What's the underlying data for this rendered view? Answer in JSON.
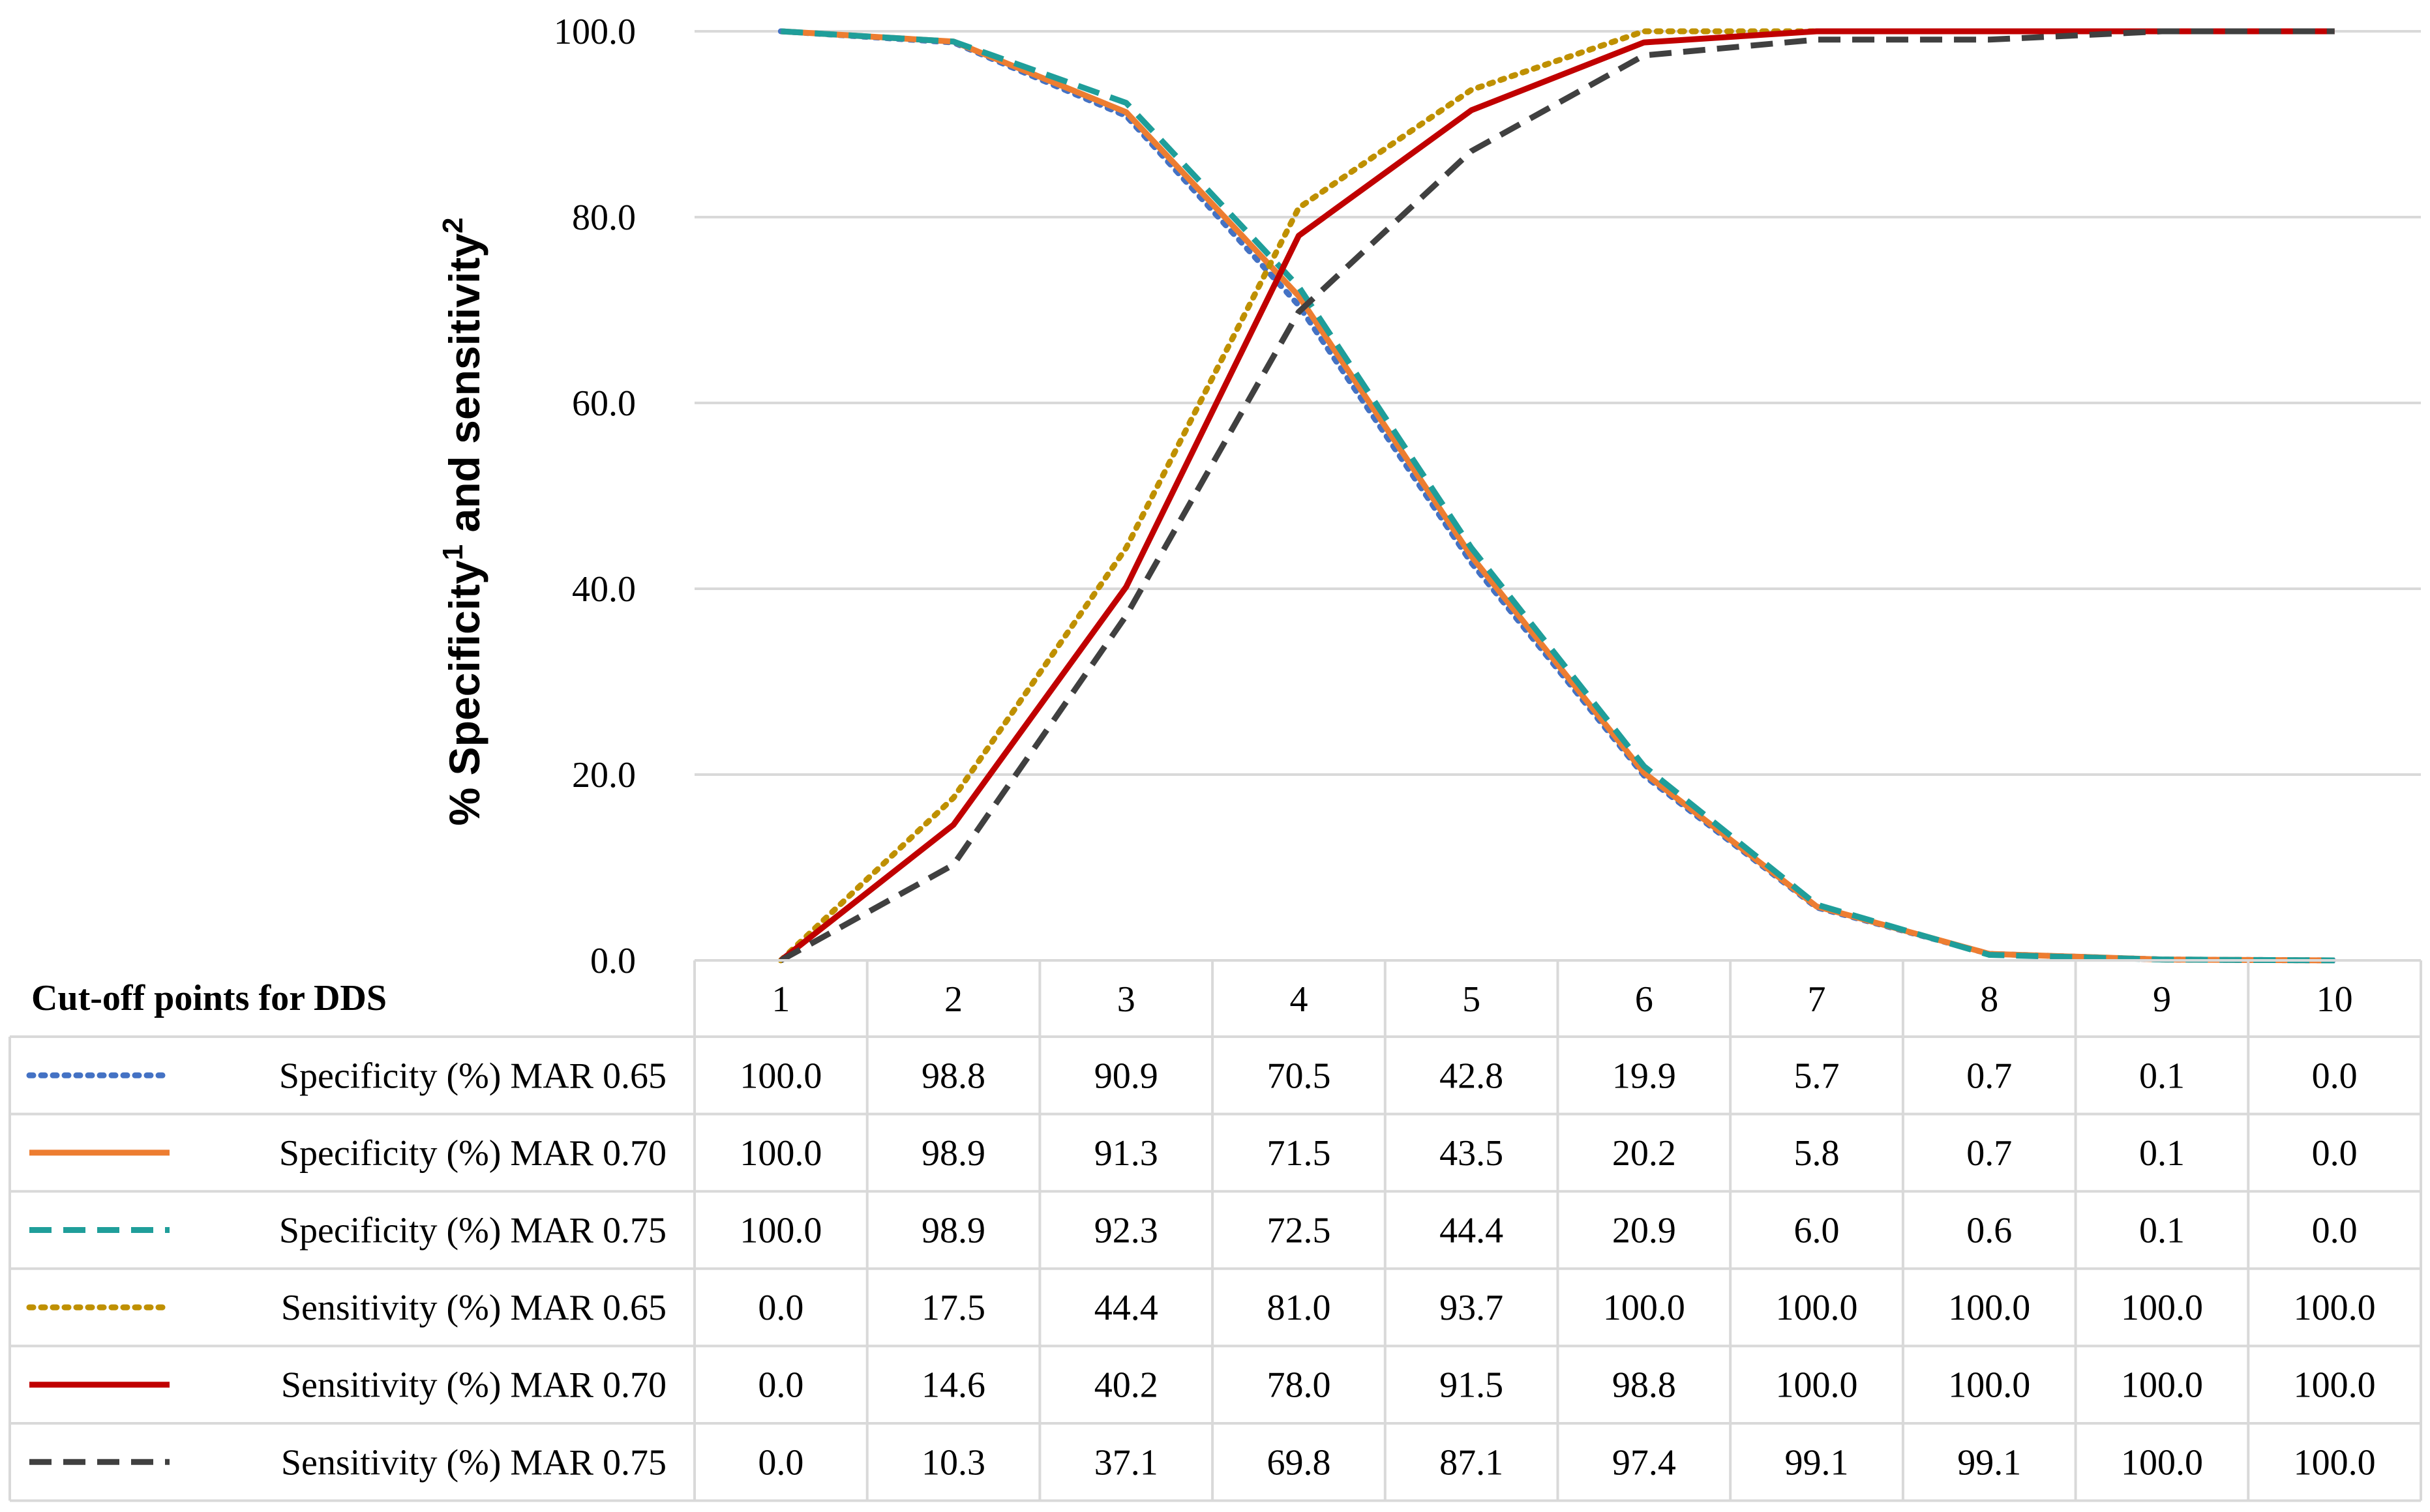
{
  "chart_data": {
    "type": "line",
    "title": "",
    "xlabel": "Cut-off points for DDS",
    "ylabel_main": "% Specificity",
    "ylabel_sup1": "1",
    "ylabel_mid": " and sensitivity",
    "ylabel_sup2": "2",
    "ylim": [
      0,
      100
    ],
    "yticks": [
      "0.0",
      "20.0",
      "40.0",
      "60.0",
      "80.0",
      "100.0"
    ],
    "categories": [
      "1",
      "2",
      "3",
      "4",
      "5",
      "6",
      "7",
      "8",
      "9",
      "10"
    ],
    "legend": "data-table",
    "series": [
      {
        "name": "Specificity (%) MAR 0.65",
        "color": "#4472c4",
        "dash": "dotted",
        "values": [
          100.0,
          98.8,
          90.9,
          70.5,
          42.8,
          19.9,
          5.7,
          0.7,
          0.1,
          0.0
        ],
        "labels": [
          "100.0",
          "98.8",
          "90.9",
          "70.5",
          "42.8",
          "19.9",
          "5.7",
          "0.7",
          "0.1",
          "0.0"
        ]
      },
      {
        "name": "Specificity (%) MAR 0.70",
        "color": "#ed7d31",
        "dash": "solid",
        "values": [
          100.0,
          98.9,
          91.3,
          71.5,
          43.5,
          20.2,
          5.8,
          0.7,
          0.1,
          0.0
        ],
        "labels": [
          "100.0",
          "98.9",
          "91.3",
          "71.5",
          "43.5",
          "20.2",
          "5.8",
          "0.7",
          "0.1",
          "0.0"
        ]
      },
      {
        "name": "Specificity (%) MAR 0.75",
        "color": "#1f9e9a",
        "dash": "dashed",
        "values": [
          100.0,
          98.9,
          92.3,
          72.5,
          44.4,
          20.9,
          6.0,
          0.6,
          0.1,
          0.0
        ],
        "labels": [
          "100.0",
          "98.9",
          "92.3",
          "72.5",
          "44.4",
          "20.9",
          "6.0",
          "0.6",
          "0.1",
          "0.0"
        ]
      },
      {
        "name": "Sensitivity (%) MAR 0.65",
        "color": "#bf9000",
        "dash": "dotted",
        "values": [
          0.0,
          17.5,
          44.4,
          81.0,
          93.7,
          100.0,
          100.0,
          100.0,
          100.0,
          100.0
        ],
        "labels": [
          "0.0",
          "17.5",
          "44.4",
          "81.0",
          "93.7",
          "100.0",
          "100.0",
          "100.0",
          "100.0",
          "100.0"
        ]
      },
      {
        "name": "Sensitivity (%) MAR 0.70",
        "color": "#c00000",
        "dash": "solid",
        "values": [
          0.0,
          14.6,
          40.2,
          78.0,
          91.5,
          98.8,
          100.0,
          100.0,
          100.0,
          100.0
        ],
        "labels": [
          "0.0",
          "14.6",
          "40.2",
          "78.0",
          "91.5",
          "98.8",
          "100.0",
          "100.0",
          "100.0",
          "100.0"
        ]
      },
      {
        "name": "Sensitivity (%) MAR 0.75",
        "color": "#404040",
        "dash": "dashed",
        "values": [
          0.0,
          10.3,
          37.1,
          69.8,
          87.1,
          97.4,
          99.1,
          99.1,
          100.0,
          100.0
        ],
        "labels": [
          "0.0",
          "10.3",
          "37.1",
          "69.8",
          "87.1",
          "97.4",
          "99.1",
          "99.1",
          "100.0",
          "100.0"
        ]
      }
    ]
  }
}
